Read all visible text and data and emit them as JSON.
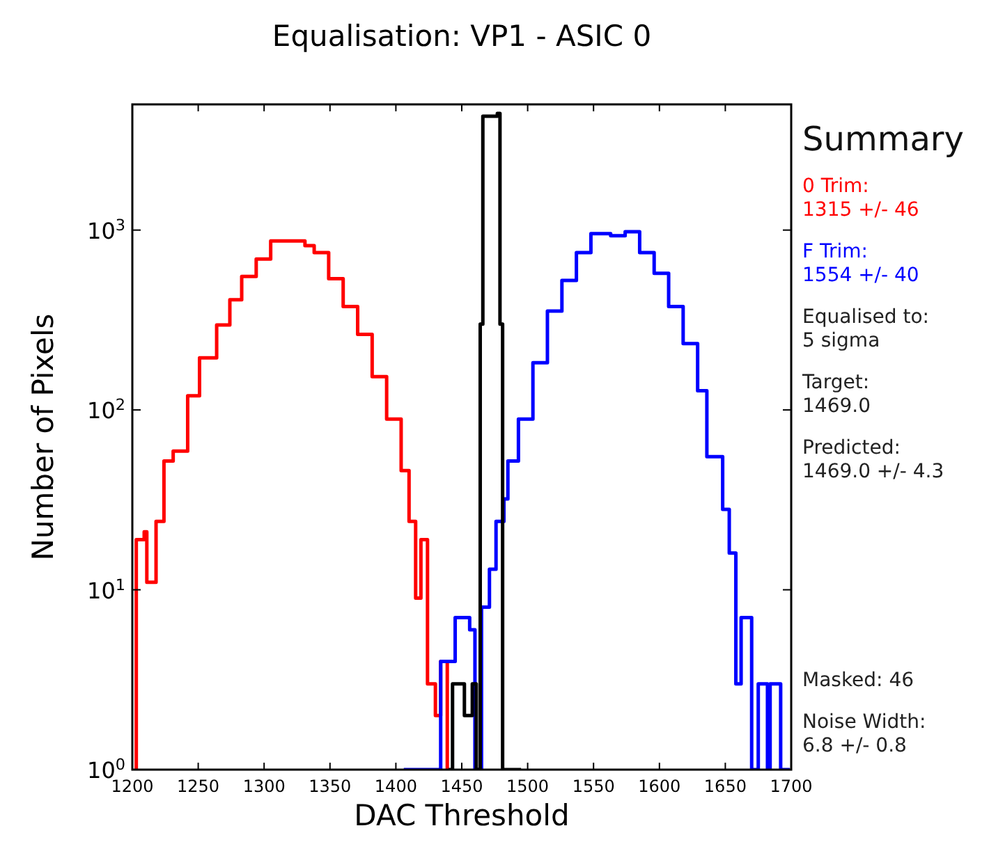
{
  "chart_data": {
    "type": "step",
    "title": "Equalisation: VP1 - ASIC 0",
    "xlabel": "DAC Threshold",
    "ylabel": "Number of Pixels",
    "log": "y",
    "grid": false,
    "xlim": [
      1200,
      1700
    ],
    "xticks": [
      1200,
      1250,
      1300,
      1350,
      1400,
      1450,
      1500,
      1550,
      1600,
      1650,
      1700
    ],
    "ylim": [
      1,
      5000
    ],
    "yticks": [
      {
        "value": 1,
        "label": "10$^{0}$"
      },
      {
        "value": 10,
        "label": "10$^{1}$"
      },
      {
        "value": 100,
        "label": "10$^{2}$"
      },
      {
        "value": 1000,
        "label": "10$^{3}$"
      }
    ],
    "series": [
      {
        "color": "#ff0000",
        "x": [
          1202,
          1203,
          1209,
          1211,
          1216,
          1218,
          1224,
          1231,
          1242,
          1251,
          1264,
          1274,
          1283,
          1294,
          1305,
          1316,
          1331,
          1338,
          1349,
          1360,
          1371,
          1382,
          1393,
          1404,
          1410,
          1415,
          1419,
          1424,
          1430,
          1434,
          1439
        ],
        "values": [
          1,
          19,
          21,
          11,
          11,
          24,
          52,
          59,
          120,
          195,
          297,
          410,
          553,
          690,
          870,
          870,
          820,
          750,
          537,
          376,
          263,
          153,
          89,
          46,
          24,
          9,
          19,
          3,
          2,
          4,
          1
        ]
      },
      {
        "color": "#0000ff",
        "x": [
          1406,
          1424,
          1434,
          1440,
          1445,
          1450,
          1456,
          1460,
          1465,
          1471,
          1476,
          1482,
          1485,
          1493,
          1504,
          1515,
          1526,
          1537,
          1548,
          1563,
          1574,
          1585,
          1596,
          1607,
          1618,
          1629,
          1636,
          1648,
          1653,
          1658,
          1662,
          1670,
          1675,
          1682,
          1684,
          1692,
          1699
        ],
        "values": [
          1,
          1,
          4,
          4,
          7,
          7,
          6,
          1,
          8,
          13,
          24,
          32,
          52,
          89,
          183,
          355,
          525,
          750,
          955,
          930,
          980,
          750,
          575,
          376,
          234,
          128,
          55,
          28,
          16,
          3,
          7,
          1,
          3,
          1,
          3,
          1,
          1
        ]
      },
      {
        "color": "#000000",
        "x": [
          1440,
          1443,
          1452,
          1458,
          1461,
          1464,
          1466,
          1477,
          1479,
          1481,
          1490,
          1495
        ],
        "values": [
          1,
          3,
          2,
          3,
          1,
          300,
          4300,
          4450,
          300,
          1,
          1,
          1
        ]
      }
    ],
    "annotations": [
      "Summary",
      "0 Trim:\n1315 +/- 46",
      "F Trim:\n1554 +/- 40",
      "Equalised to:\n5 sigma",
      "Target:\n1469.0",
      "Predicted:\n1469.0 +/- 4.3",
      "Masked: 46",
      "Noise Width:\n6.8 +/- 0.8"
    ]
  }
}
